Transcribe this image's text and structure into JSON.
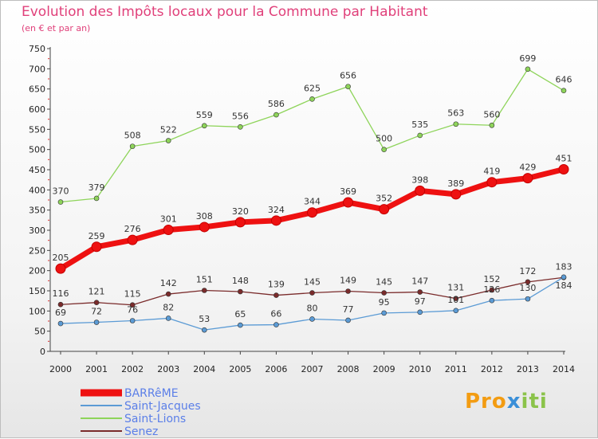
{
  "header": {
    "title": "Evolution des Impôts locaux pour la Commune par Habitant",
    "subtitle": "(en € et par an)"
  },
  "logo": {
    "text": "Proxiti",
    "colors": [
      "#f39c12",
      "#3a8fd8",
      "#8bc34a"
    ]
  },
  "chart_data": {
    "type": "line",
    "title": "Evolution des Impôts locaux pour la Commune par Habitant",
    "subtitle": "(en € et par an)",
    "x": [
      "2000",
      "2001",
      "2002",
      "2003",
      "2004",
      "2005",
      "2006",
      "2007",
      "2008",
      "2009",
      "2010",
      "2011",
      "2012",
      "2013",
      "2014"
    ],
    "ylim": [
      0,
      750
    ],
    "yticks": [
      0,
      50,
      100,
      150,
      200,
      250,
      300,
      350,
      400,
      450,
      500,
      550,
      600,
      650,
      700,
      750
    ],
    "grid": false,
    "legend_position": "bottom-left",
    "series": [
      {
        "name": "BARRêME",
        "color": "#ee1111",
        "values": [
          205,
          259,
          276,
          301,
          308,
          320,
          324,
          344,
          369,
          352,
          398,
          389,
          419,
          429,
          451
        ]
      },
      {
        "name": "Saint-Jacques",
        "color": "#5b9bd5",
        "values": [
          69,
          72,
          76,
          82,
          53,
          65,
          66,
          80,
          77,
          95,
          97,
          101,
          126,
          130,
          184
        ]
      },
      {
        "name": "Saint-Lions",
        "color": "#8ed45a",
        "values": [
          370,
          379,
          508,
          522,
          559,
          556,
          586,
          625,
          656,
          500,
          535,
          563,
          560,
          699,
          646
        ]
      },
      {
        "name": "Senez",
        "color": "#7a2b2b",
        "values": [
          116,
          121,
          115,
          142,
          151,
          148,
          139,
          145,
          149,
          145,
          147,
          131,
          152,
          172,
          183
        ]
      }
    ]
  }
}
